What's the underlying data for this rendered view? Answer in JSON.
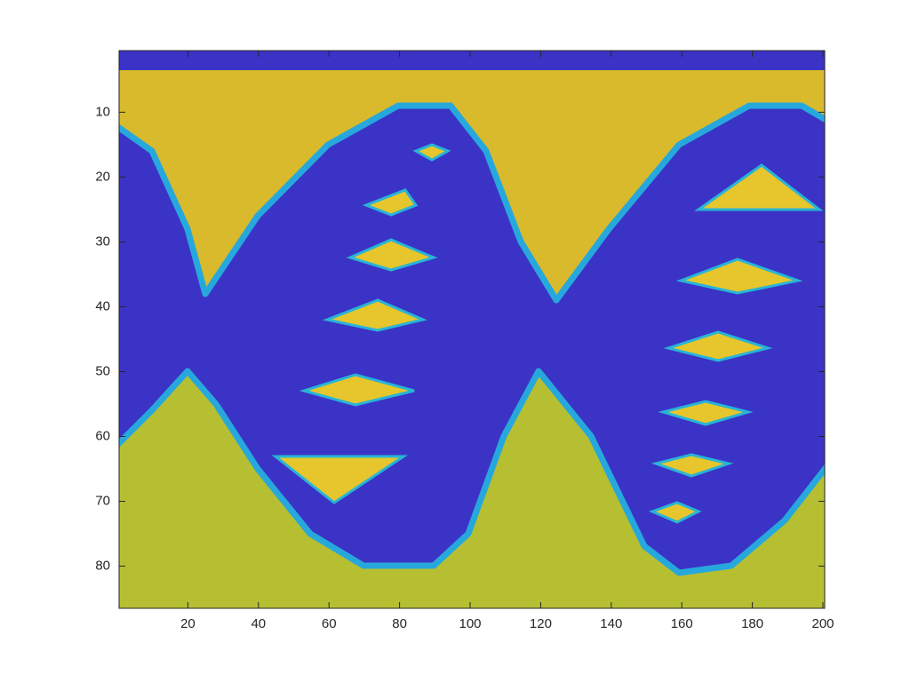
{
  "chart_data": {
    "type": "image",
    "xlim": [
      0.5,
      200.5
    ],
    "ylim": [
      0.5,
      86.5
    ],
    "y_reversed": true,
    "xticks": [
      20,
      40,
      60,
      80,
      100,
      120,
      140,
      160,
      180,
      200
    ],
    "yticks": [
      10,
      20,
      30,
      40,
      50,
      60,
      70,
      80
    ]
  }
}
